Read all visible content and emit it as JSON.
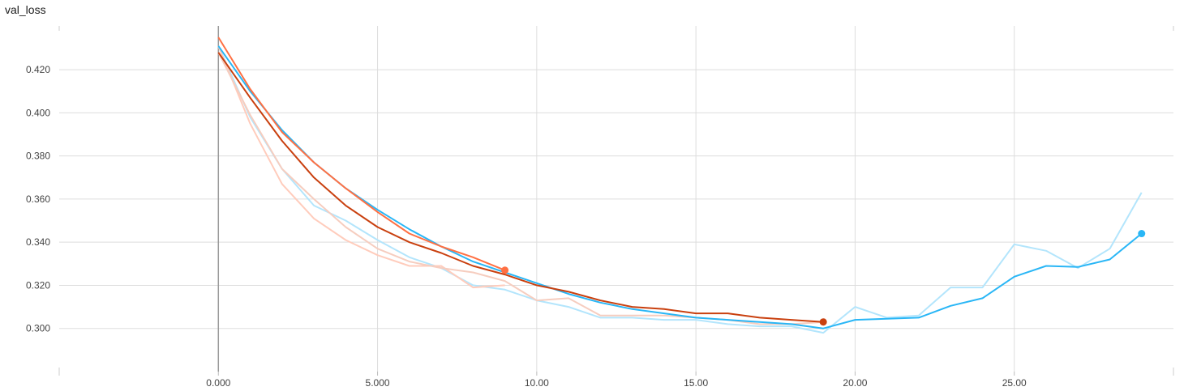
{
  "chart_data": {
    "type": "line",
    "title": "val_loss",
    "xlabel": "",
    "ylabel": "",
    "xlim": [
      -5,
      30
    ],
    "ylim": [
      0.28,
      0.4403
    ],
    "grid": true,
    "x_ticks": [
      {
        "value": 0,
        "label": "0.000"
      },
      {
        "value": 5,
        "label": "5.000"
      },
      {
        "value": 10,
        "label": "10.00"
      },
      {
        "value": 15,
        "label": "15.00"
      },
      {
        "value": 20,
        "label": "20.00"
      },
      {
        "value": 25,
        "label": "25.00"
      }
    ],
    "y_ticks": [
      {
        "value": 0.42,
        "label": "0.420"
      },
      {
        "value": 0.4,
        "label": "0.400"
      },
      {
        "value": 0.38,
        "label": "0.380"
      },
      {
        "value": 0.36,
        "label": "0.360"
      },
      {
        "value": 0.34,
        "label": "0.340"
      },
      {
        "value": 0.32,
        "label": "0.320"
      },
      {
        "value": 0.3,
        "label": "0.300"
      }
    ],
    "series": [
      {
        "color": "#29b6f6",
        "raw_color": "#b3e5fc",
        "x": [
          0,
          1,
          2,
          3,
          4,
          5,
          6,
          7,
          8,
          9,
          10,
          11,
          12,
          13,
          14,
          15,
          16,
          17,
          18,
          19,
          20,
          21,
          22,
          23,
          24,
          25,
          26,
          27,
          28,
          29
        ],
        "raw": [
          0.431,
          0.398,
          0.374,
          0.357,
          0.35,
          0.341,
          0.333,
          0.328,
          0.32,
          0.318,
          0.313,
          0.31,
          0.305,
          0.305,
          0.304,
          0.304,
          0.302,
          0.301,
          0.301,
          0.298,
          0.31,
          0.305,
          0.306,
          0.319,
          0.319,
          0.339,
          0.336,
          0.328,
          0.337,
          0.363
        ],
        "smoothed": [
          0.431,
          0.41,
          0.392,
          0.377,
          0.365,
          0.355,
          0.346,
          0.338,
          0.331,
          0.326,
          0.321,
          0.316,
          0.312,
          0.309,
          0.307,
          0.305,
          0.304,
          0.303,
          0.302,
          0.3,
          0.304,
          0.3045,
          0.305,
          0.3105,
          0.314,
          0.324,
          0.329,
          0.3285,
          0.332,
          0.344
        ]
      },
      {
        "color": "#ff7043",
        "raw_color": "#ffccbc",
        "x": [
          0,
          1,
          2,
          3,
          4,
          5,
          6,
          7,
          8,
          9
        ],
        "raw": [
          0.431,
          0.395,
          0.367,
          0.351,
          0.341,
          0.334,
          0.329,
          0.329,
          0.319,
          0.32
        ],
        "smoothed": [
          0.435,
          0.411,
          0.391,
          0.377,
          0.365,
          0.354,
          0.344,
          0.338,
          0.333,
          0.327
        ]
      },
      {
        "color": "#c9400f",
        "raw_color": "#f6cdbf",
        "x": [
          0,
          1,
          2,
          3,
          4,
          5,
          6,
          7,
          8,
          9,
          10,
          11,
          12,
          13,
          14,
          15,
          16,
          17,
          18,
          19
        ],
        "raw": [
          0.428,
          0.399,
          0.374,
          0.36,
          0.347,
          0.337,
          0.331,
          0.328,
          0.326,
          0.322,
          0.313,
          0.314,
          0.306,
          0.306,
          0.306,
          0.305,
          0.304,
          0.302,
          0.302,
          0.303
        ],
        "smoothed": [
          0.428,
          0.407,
          0.387,
          0.37,
          0.357,
          0.347,
          0.34,
          0.335,
          0.329,
          0.325,
          0.32,
          0.317,
          0.313,
          0.31,
          0.309,
          0.307,
          0.307,
          0.305,
          0.304,
          0.303
        ]
      }
    ]
  }
}
